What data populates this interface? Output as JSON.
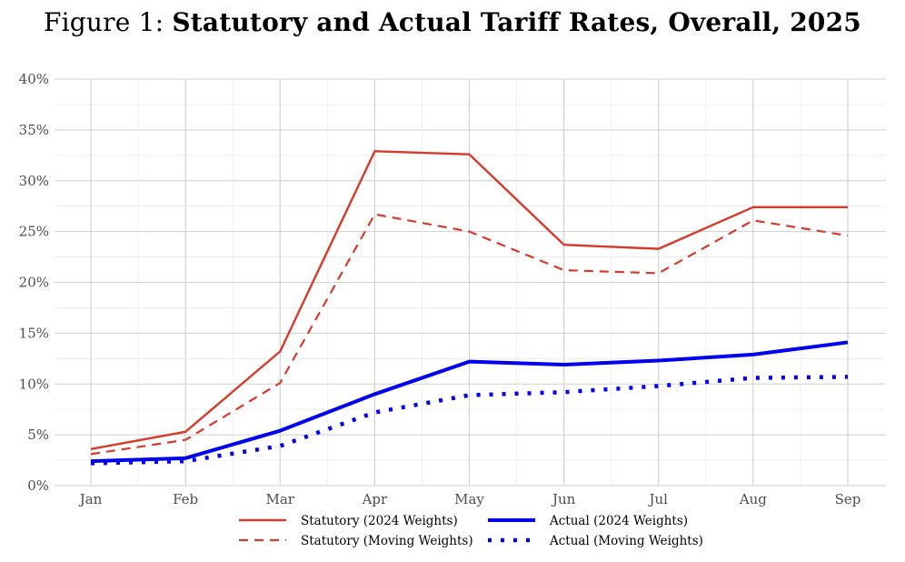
{
  "figure_prefix": "Figure 1:",
  "chart_data": {
    "type": "line",
    "title": "Statutory and Actual Tariff Rates, Overall, 2025",
    "xlabel": "",
    "ylabel": "",
    "categories": [
      "Jan",
      "Feb",
      "Mar",
      "Apr",
      "May",
      "Jun",
      "Jul",
      "Aug",
      "Sep"
    ],
    "ylim": [
      0,
      40
    ],
    "yticks": [
      0,
      5,
      10,
      15,
      20,
      25,
      30,
      35,
      40
    ],
    "ytick_labels": [
      "0%",
      "5%",
      "10%",
      "15%",
      "20%",
      "25%",
      "30%",
      "35%",
      "40%"
    ],
    "grid": true,
    "legend_position": "bottom",
    "series": [
      {
        "name": "Statutory (2024 Weights)",
        "values": [
          3.6,
          5.3,
          13.2,
          32.9,
          32.6,
          23.7,
          23.3,
          27.4,
          27.4
        ],
        "color": "#d73a2a",
        "style": "solid"
      },
      {
        "name": "Actual (2024 Weights)",
        "values": [
          2.4,
          2.7,
          5.4,
          9.0,
          12.2,
          11.9,
          12.3,
          12.9,
          14.1
        ],
        "color": "#0000ee",
        "style": "solid-thick"
      },
      {
        "name": "Statutory (Moving Weights)",
        "values": [
          3.1,
          4.5,
          10.1,
          26.7,
          25.0,
          21.2,
          20.9,
          26.1,
          24.6
        ],
        "color": "#d73a2a",
        "style": "dashed"
      },
      {
        "name": "Actual (Moving Weights)",
        "values": [
          2.2,
          2.4,
          3.9,
          7.2,
          8.9,
          9.2,
          9.8,
          10.6,
          10.7
        ],
        "color": "#0000ee",
        "style": "dotted"
      }
    ]
  }
}
